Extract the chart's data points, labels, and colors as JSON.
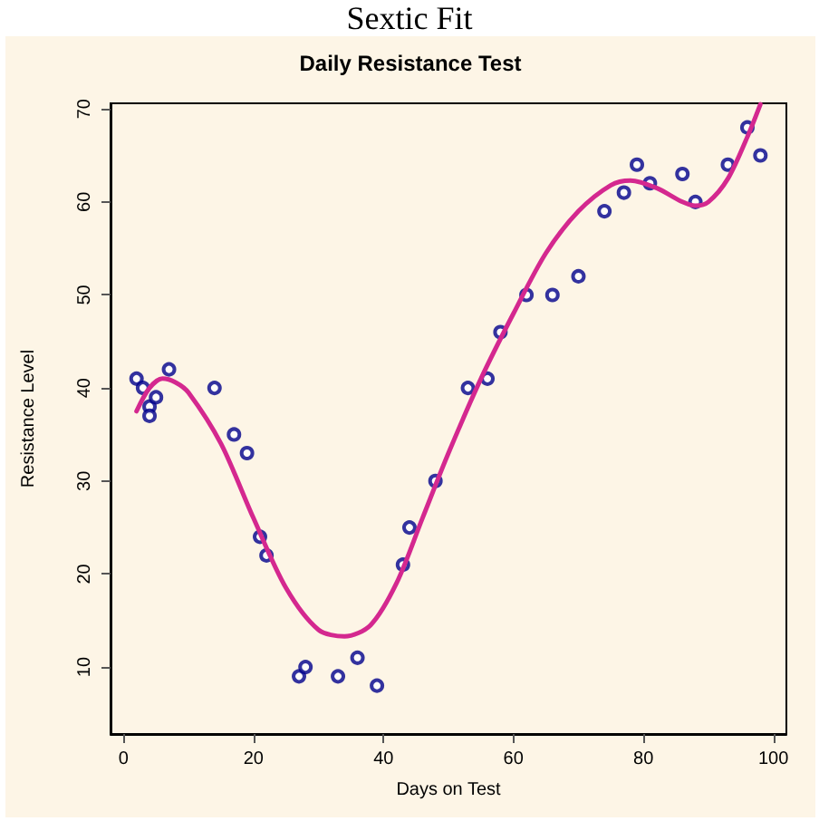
{
  "chart_data": {
    "type": "scatter",
    "title": "Daily Resistance Test",
    "xlabel": "Days on Test",
    "ylabel": "Resistance Level",
    "annotations": [
      "Sextic Fit"
    ],
    "xlim": [
      -2,
      102
    ],
    "xticks": [
      0,
      20,
      40,
      60,
      80,
      100
    ],
    "ylim": [
      2.8,
      70.6
    ],
    "yticks": [
      10,
      20,
      30,
      40,
      50,
      60,
      70
    ],
    "grid": false,
    "marker": "circle",
    "series": [
      {
        "color": "#00008b",
        "x": [
          2,
          3,
          4,
          4,
          5,
          7,
          14,
          17,
          19,
          21,
          22,
          27,
          28,
          33,
          36,
          39,
          43,
          44,
          48,
          53,
          56,
          58,
          62,
          66,
          70,
          74,
          77,
          79,
          81,
          86,
          88,
          93,
          96,
          98
        ],
        "values": [
          41,
          40,
          38,
          37,
          39,
          42,
          40,
          35,
          33,
          24,
          22,
          9,
          10,
          9,
          11,
          8,
          21,
          25,
          30,
          40,
          41,
          46,
          50,
          50,
          52,
          59,
          61,
          64,
          62,
          63,
          60,
          64,
          68,
          65
        ]
      },
      {
        "type": "line",
        "color": "#d4288f",
        "marker": "none",
        "line_style": "solid",
        "x": [
          2,
          4,
          6,
          8,
          10,
          15,
          20,
          25,
          30,
          34,
          38,
          42,
          46,
          50,
          55,
          60,
          65,
          70,
          75,
          78,
          82,
          86,
          88,
          90,
          93,
          96,
          98
        ],
        "values": [
          37.5,
          40,
          41,
          40.6,
          39.5,
          34,
          26,
          18.5,
          14,
          13.3,
          14.5,
          19,
          26,
          33,
          41,
          48,
          54.5,
          59,
          61.8,
          62.3,
          61.5,
          60,
          59.6,
          60,
          62.5,
          67,
          70.5
        ]
      }
    ]
  }
}
